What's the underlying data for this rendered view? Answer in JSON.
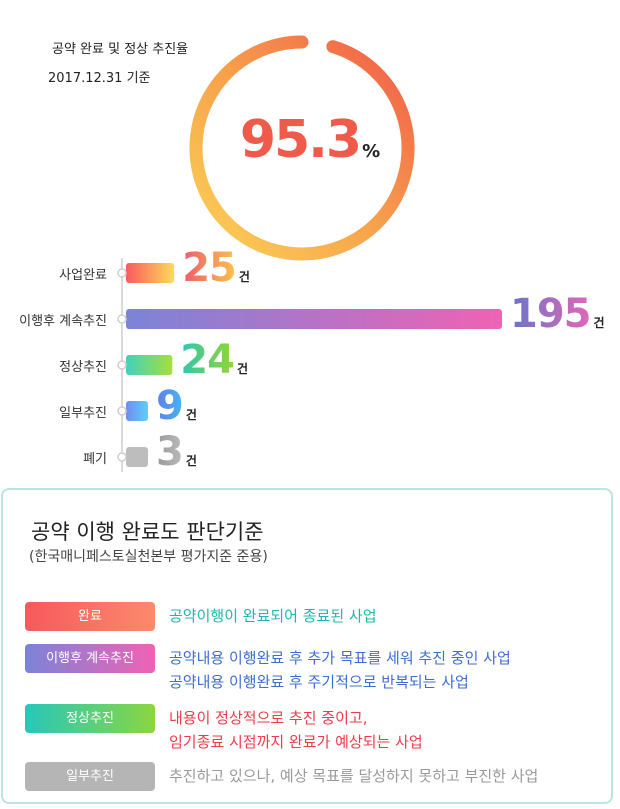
{
  "header": {
    "title": "공약 완료 및 정상 추진율",
    "date": "2017.12.31 기준"
  },
  "gauge": {
    "percent_value": 95.3,
    "percent_label": "95.3",
    "unit": "%",
    "colors": [
      "#fcd257",
      "#f7a04b",
      "#f05a4a"
    ]
  },
  "chart_data": {
    "type": "bar",
    "orientation": "horizontal",
    "categories": [
      "사업완료",
      "이행후 계속추진",
      "정상추진",
      "일부추진",
      "폐기"
    ],
    "values": [
      25,
      195,
      24,
      9,
      3
    ],
    "value_labels": [
      "25",
      "195",
      "24",
      "9",
      "3"
    ],
    "unit": "건",
    "title": "",
    "xlabel": "",
    "ylabel": "",
    "xlim": [
      0,
      195
    ],
    "grid": false,
    "bar_gradients": [
      [
        "#f85a5e",
        "#fedb58"
      ],
      [
        "#7b84d8",
        "#f062b4"
      ],
      [
        "#3fd1bd",
        "#a6e03a"
      ],
      [
        "#6f8df0",
        "#5ccff7"
      ],
      [
        "#bdbdbd",
        "#bdbdbd"
      ]
    ],
    "label_colors": [
      [
        "#f05a6e",
        "#fbc34a"
      ],
      [
        "#6a74c9",
        "#e367b6"
      ],
      [
        "#2cc7b0",
        "#93d632"
      ],
      [
        "#5f7fea",
        "#46b6f2"
      ],
      [
        "#999999",
        "#bbbbbb"
      ]
    ]
  },
  "criteria": {
    "title": "공약 이행 완료도 판단기준",
    "subtitle": "(한국매니페스토실천본부 평가지준 준용)",
    "items": [
      {
        "badge": "완료",
        "badge_colors": [
          "#f7595c",
          "#fc8a6b"
        ],
        "text_color": "#1fb7ad",
        "lines": [
          "공약이행이 완료되어 종료된 사업"
        ]
      },
      {
        "badge": "이행후 계속추진",
        "badge_colors": [
          "#7b84d8",
          "#f062b4"
        ],
        "text_color": "#3f6ed1",
        "lines": [
          "공약내용 이행완료 후 추가 목표를 세워 추진 중인 사업",
          "공약내용 이행완료 후 주기적으로 반복되는 사업"
        ]
      },
      {
        "badge": "정상추진",
        "badge_colors": [
          "#27c7ba",
          "#8bd640"
        ],
        "text_color": "#ee3b4a",
        "lines": [
          "내용이 정상적으로 추진 중이고,",
          "임기종료 시점까지 완료가 예상되는 사업"
        ]
      },
      {
        "badge": "일부추진",
        "badge_colors": [
          "#b5b5b5",
          "#b5b5b5"
        ],
        "text_color": "#999999",
        "lines": [
          "추진하고 있으나, 예상 목표를 달성하지 못하고 부진한 사업"
        ]
      }
    ]
  }
}
